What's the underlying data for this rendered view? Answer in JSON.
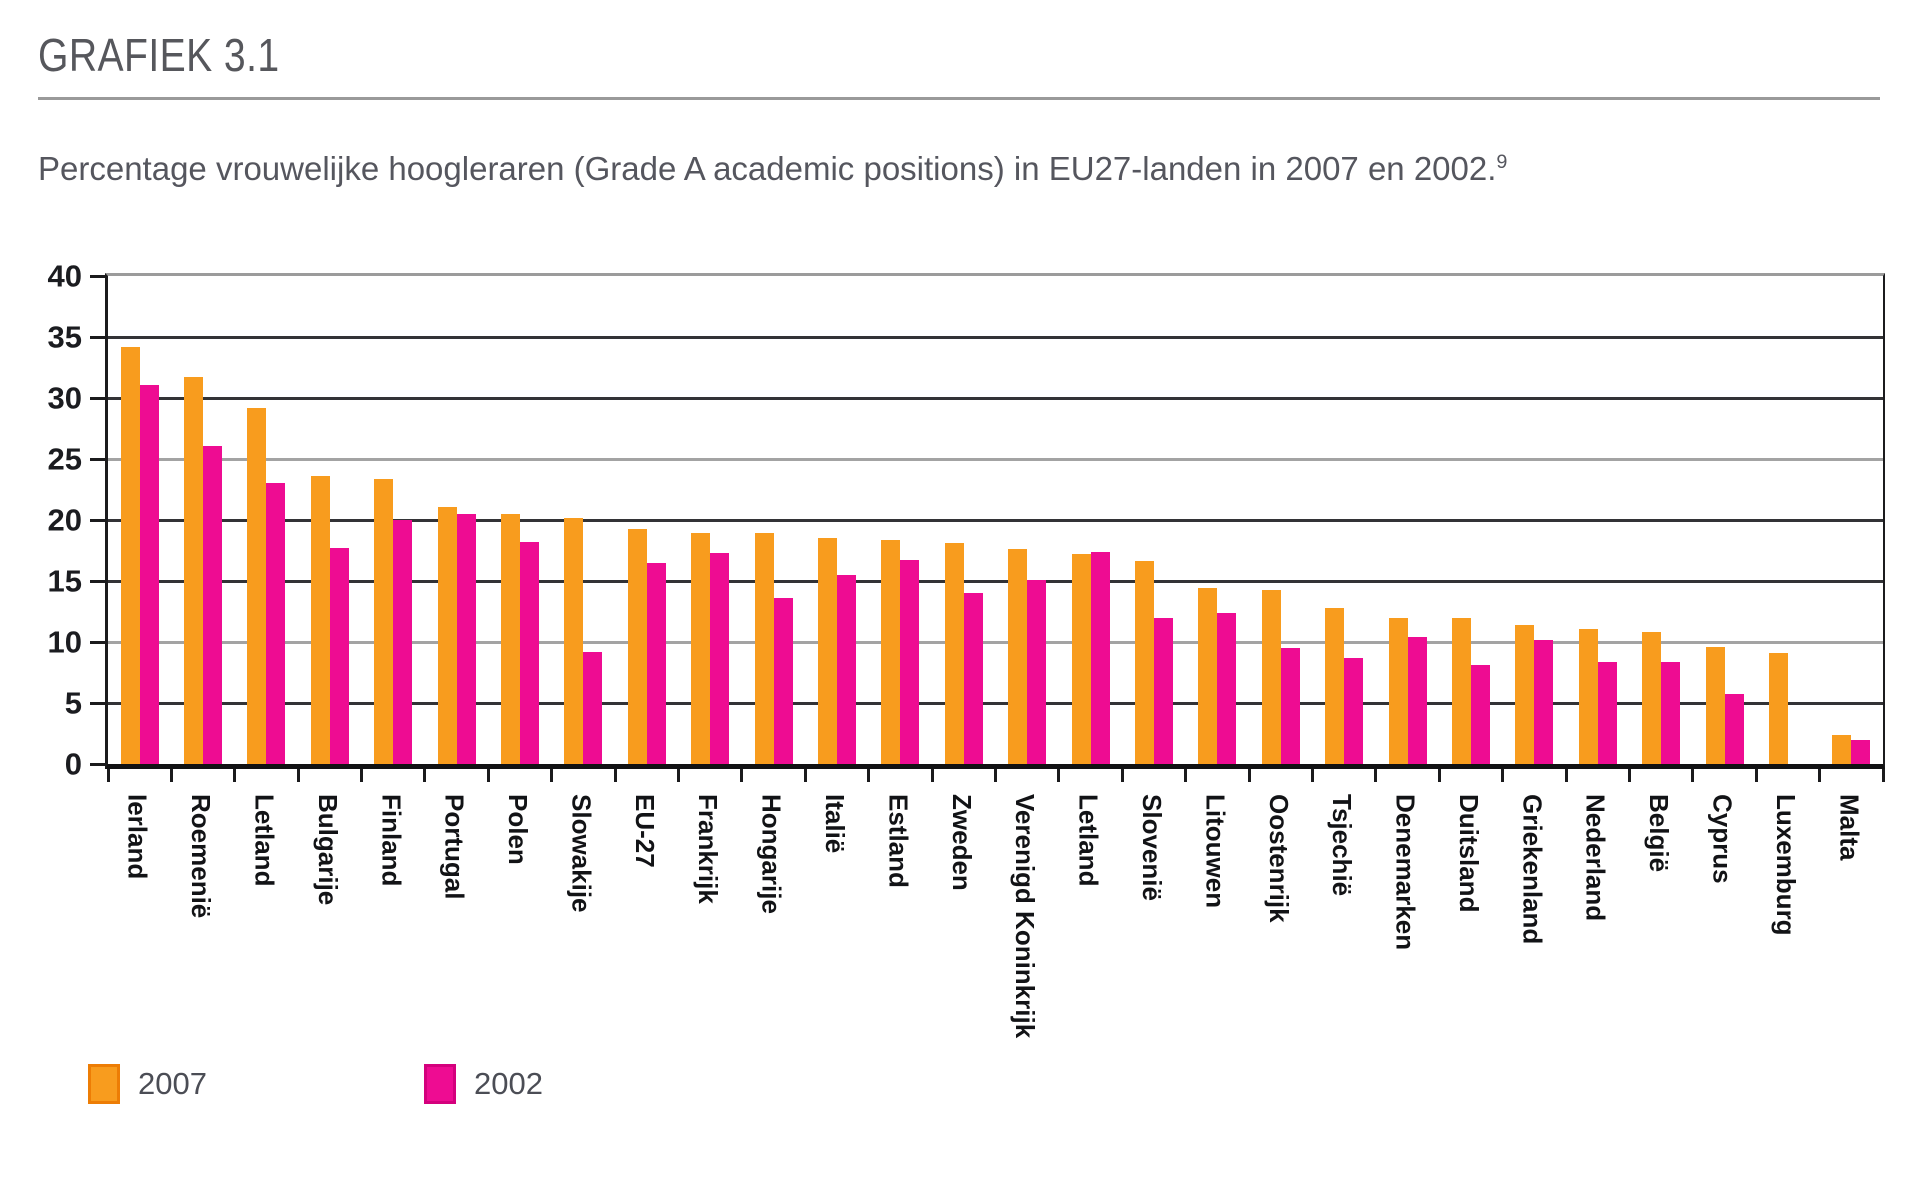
{
  "header": {
    "title": "GRAFIEK 3.1"
  },
  "subtitle": {
    "text": "Percentage vrouwelijke hoogleraren (Grade A academic positions) in EU27-landen in 2007 en 2002.",
    "footnote_marker": "9"
  },
  "colors": {
    "bar_2007": "#F89C1E",
    "bar_2007_border": "#ED7D05",
    "bar_2002": "#EE0C92",
    "bar_2002_border": "#D4007D",
    "axis": "#1b1b1d",
    "gridline_dark": "#333336",
    "gridline_light": "#a3a3a3",
    "title_text": "#56575c",
    "subtitle_text": "#55565e",
    "tick_label_text": "#1b1c20",
    "legend_text": "#4b4d55"
  },
  "legend": [
    {
      "label": "2007",
      "color": "#F89C1E",
      "border": "#ED7D05"
    },
    {
      "label": "2002",
      "color": "#EE0C92",
      "border": "#D4007D"
    }
  ],
  "chart_data": {
    "type": "bar",
    "title": "Percentage vrouwelijke hoogleraren (Grade A academic positions) in EU27-landen in 2007 en 2002.",
    "xlabel": "",
    "ylabel": "",
    "ylim": [
      0,
      40
    ],
    "yticks": [
      0,
      5,
      10,
      15,
      20,
      25,
      30,
      35,
      40
    ],
    "light_gridlines": [
      40,
      25,
      10
    ],
    "grid": true,
    "legend_position": "bottom-left",
    "categories": [
      "Ierland",
      "Roemenië",
      "Letland",
      "Bulgarije",
      "Finland",
      "Portugal",
      "Polen",
      "Slowakije",
      "EU-27",
      "Frankrijk",
      "Hongarije",
      "Italië",
      "Estland",
      "Zweden",
      "Verenigd Koninkrijk",
      "Letland",
      "Slovenië",
      "Litouwen",
      "Oostenrijk",
      "Tsjechië",
      "Denemarken",
      "Duitsland",
      "Griekenland",
      "Nederland",
      "België",
      "Cyprus",
      "Luxemburg",
      "Malta"
    ],
    "series": [
      {
        "name": "2007",
        "values": [
          34.2,
          31.7,
          29.2,
          23.6,
          23.4,
          21.1,
          20.5,
          20.2,
          19.3,
          18.9,
          18.9,
          18.5,
          18.4,
          18.1,
          17.6,
          17.2,
          16.6,
          14.4,
          14.3,
          12.8,
          12.0,
          12.0,
          11.4,
          11.1,
          10.8,
          9.6,
          9.1,
          2.4
        ]
      },
      {
        "name": "2002",
        "values": [
          31.1,
          26.1,
          23.0,
          17.7,
          20.0,
          20.5,
          18.2,
          9.2,
          16.5,
          17.3,
          13.6,
          15.5,
          16.7,
          14.0,
          15.1,
          17.4,
          12.0,
          12.4,
          9.5,
          8.7,
          10.4,
          8.1,
          10.2,
          8.4,
          8.4,
          5.7,
          null,
          2.0
        ]
      }
    ]
  }
}
